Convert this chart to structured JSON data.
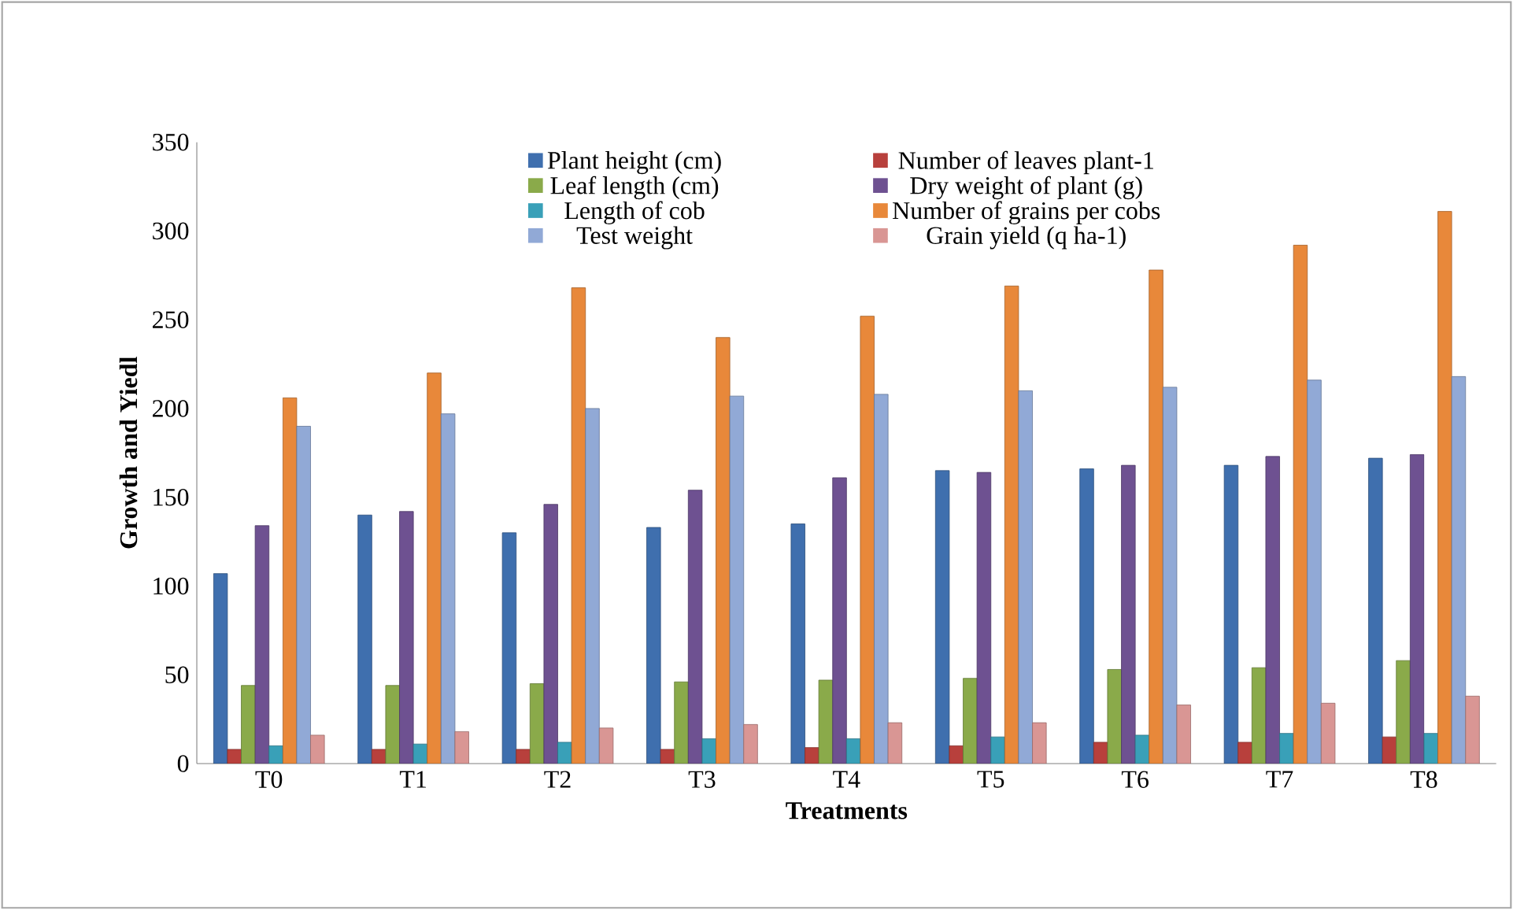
{
  "chart_data": {
    "type": "bar",
    "xlabel": "Treatments",
    "ylabel": "Growth and Yiedl",
    "categories": [
      "T0",
      "T1",
      "T2",
      "T3",
      "T4",
      "T5",
      "T6",
      "T7",
      "T8"
    ],
    "ylim": [
      0,
      350
    ],
    "yticks": [
      0,
      50,
      100,
      150,
      200,
      250,
      300,
      350
    ],
    "grid": false,
    "legend": "top",
    "series": [
      {
        "name": "Plant height (cm)",
        "color": "#3f6fae",
        "values": [
          107,
          140,
          130,
          133,
          135,
          165,
          166,
          168,
          172
        ]
      },
      {
        "name": "Number of leaves plant-1",
        "color": "#b8403c",
        "values": [
          8,
          8,
          8,
          8,
          9,
          10,
          12,
          12,
          15
        ]
      },
      {
        "name": "Leaf length (cm)",
        "color": "#8aaa4a",
        "values": [
          44,
          44,
          45,
          46,
          47,
          48,
          53,
          54,
          58
        ]
      },
      {
        "name": "Dry weight of plant (g)",
        "color": "#6e5191",
        "values": [
          134,
          142,
          146,
          154,
          161,
          164,
          168,
          173,
          174
        ]
      },
      {
        "name": "Length of cob",
        "color": "#39a0b8",
        "values": [
          10,
          11,
          12,
          14,
          14,
          15,
          16,
          17,
          17
        ]
      },
      {
        "name": "Number of grains per cobs",
        "color": "#e8883a",
        "values": [
          206,
          220,
          268,
          240,
          252,
          269,
          278,
          292,
          311
        ]
      },
      {
        "name": "Test weight",
        "color": "#91a9d6",
        "values": [
          190,
          197,
          200,
          207,
          208,
          210,
          212,
          216,
          218
        ]
      },
      {
        "name": "Grain yield (q ha-1)",
        "color": "#d99694",
        "values": [
          16,
          18,
          20,
          22,
          23,
          23,
          33,
          34,
          38
        ]
      }
    ]
  }
}
